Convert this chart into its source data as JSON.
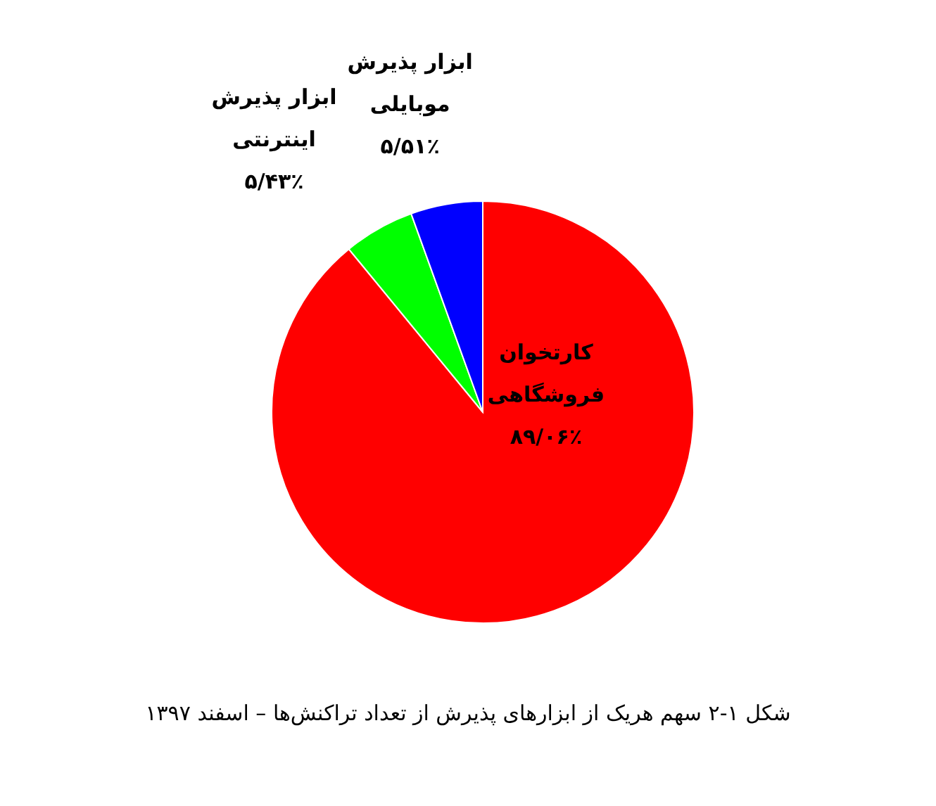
{
  "chart_data": {
    "type": "pie",
    "categories": [
      "کارتخوان فروشگاهی",
      "ابزار پذیرش اینترنتی",
      "ابزار پذیرش موبایلی"
    ],
    "values": [
      89.06,
      5.43,
      5.51
    ],
    "colors": [
      "#ff0000",
      "#00ff00",
      "#0000ff"
    ],
    "value_labels": [
      "۸۹/۰۶٪",
      "۵/۴۳٪",
      "۵/۵۱٪"
    ],
    "annotations": [
      "شکل ۱-۲ سهم هریک از ابزارهای پذیرش از تعداد تراکنش‌ها – اسفند ۱۳۹۷"
    ],
    "legend": false
  }
}
